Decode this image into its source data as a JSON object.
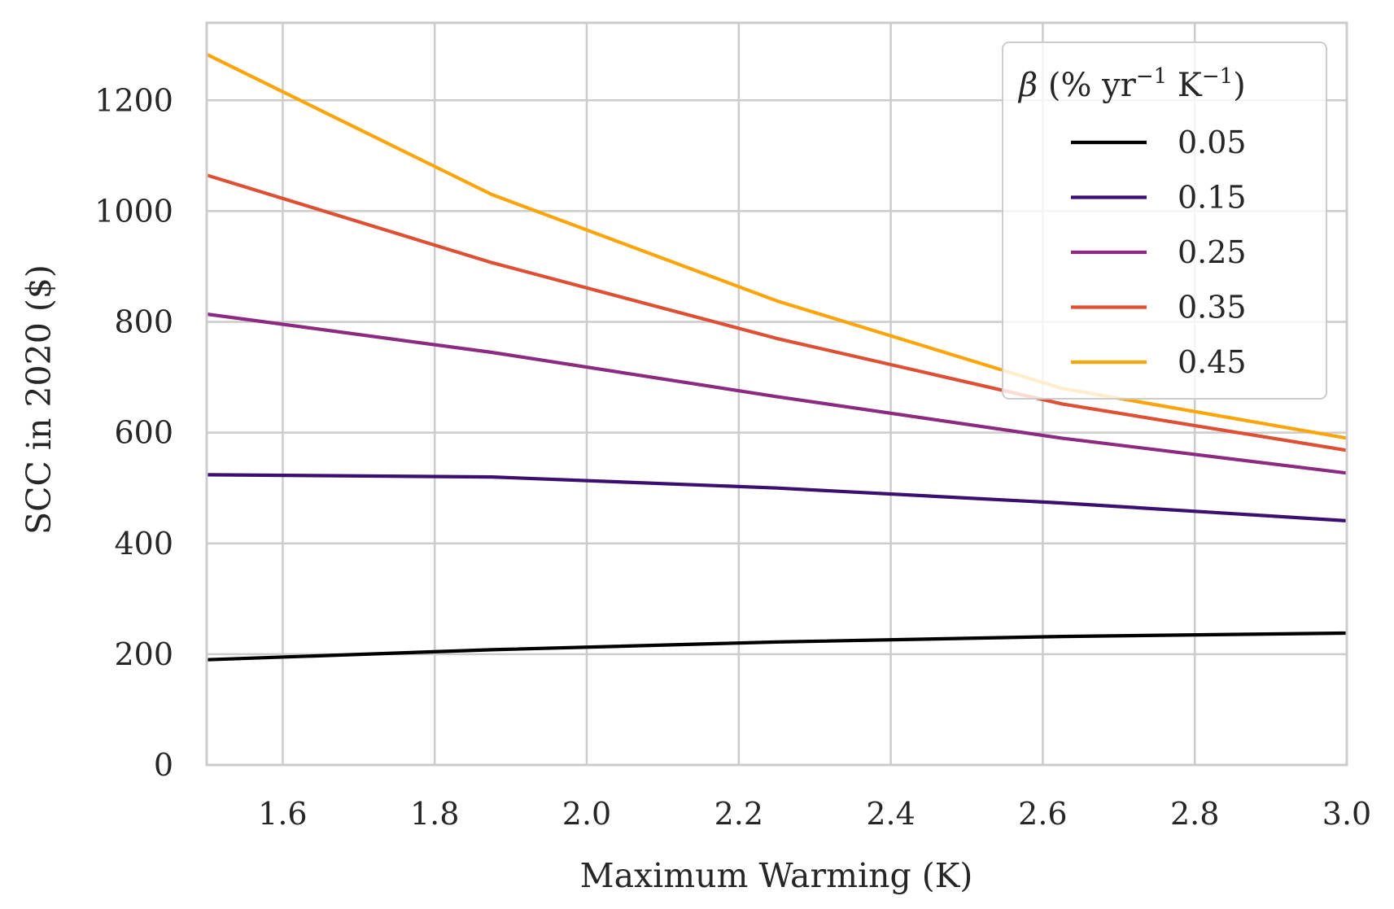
{
  "chart_data": {
    "type": "line",
    "xlabel": "Maximum Warming (K)",
    "ylabel": "SCC in 2020 ($)",
    "xlim": [
      1.5,
      3.0
    ],
    "ylim": [
      0,
      1340
    ],
    "x_ticks": [
      "1.6",
      "1.8",
      "2.0",
      "2.2",
      "2.4",
      "2.6",
      "2.8",
      "3.0"
    ],
    "y_ticks": [
      "0",
      "200",
      "400",
      "600",
      "800",
      "1000",
      "1200"
    ],
    "grid": true,
    "legend": {
      "title_symbol": "β",
      "title_rest": " (% yr",
      "title_exp1": "−1",
      "title_mid": " K",
      "title_exp2": "−1",
      "title_end": ")",
      "placement": "top-right"
    },
    "x": [
      1.5,
      1.875,
      2.25,
      2.625,
      3.0
    ],
    "series": [
      {
        "name": "0.05",
        "color": "#000000",
        "values": [
          190,
          208,
          222,
          232,
          238
        ]
      },
      {
        "name": "0.15",
        "color": "#3b0f70",
        "values": [
          524,
          520,
          500,
          473,
          441
        ]
      },
      {
        "name": "0.25",
        "color": "#8c2981",
        "values": [
          814,
          745,
          665,
          590,
          527
        ]
      },
      {
        "name": "0.35",
        "color": "#de4f33",
        "values": [
          1065,
          907,
          770,
          652,
          568
        ]
      },
      {
        "name": "0.45",
        "color": "#fca50a",
        "values": [
          1283,
          1030,
          838,
          680,
          590
        ]
      }
    ]
  }
}
